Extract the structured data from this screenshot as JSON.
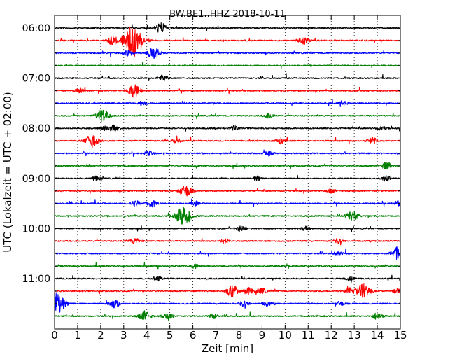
{
  "chart_data": {
    "type": "line",
    "title": "BW.BE1..HHZ 2018-10-11",
    "xlabel": "Zeit  [min]",
    "ylabel": "UTC (Lokalzeit = UTC + 02:00)",
    "xlim": [
      0,
      15
    ],
    "x_ticks": [
      "0",
      "1",
      "2",
      "3",
      "4",
      "5",
      "6",
      "7",
      "8",
      "9",
      "10",
      "11",
      "12",
      "13",
      "14",
      "15"
    ],
    "y_tick_labels": [
      "06:00",
      "07:00",
      "08:00",
      "09:00",
      "10:00",
      "11:00"
    ],
    "grid": "vertical dotted lines at each minute",
    "trace_colors": [
      "#000000",
      "#ff0000",
      "#0000ff",
      "#008000"
    ],
    "trace_interval_minutes": 15,
    "traces": [
      {
        "start": "06:00",
        "color": "#000000",
        "events": [
          [
            4.6,
            7
          ]
        ]
      },
      {
        "start": "06:15",
        "color": "#ff0000",
        "events": [
          [
            3.4,
            20
          ],
          [
            2.5,
            6
          ],
          [
            10.8,
            6
          ]
        ]
      },
      {
        "start": "06:30",
        "color": "#0000ff",
        "events": [
          [
            4.3,
            8
          ],
          [
            3.2,
            4
          ]
        ]
      },
      {
        "start": "06:45",
        "color": "#008000",
        "events": []
      },
      {
        "start": "07:00",
        "color": "#000000",
        "events": [
          [
            4.7,
            4
          ]
        ]
      },
      {
        "start": "07:15",
        "color": "#ff0000",
        "events": [
          [
            3.45,
            9
          ],
          [
            1.1,
            3
          ]
        ]
      },
      {
        "start": "07:30",
        "color": "#0000ff",
        "events": [
          [
            12.5,
            3
          ],
          [
            3.8,
            3
          ]
        ]
      },
      {
        "start": "07:45",
        "color": "#008000",
        "events": [
          [
            2.1,
            9
          ],
          [
            9.3,
            4
          ]
        ]
      },
      {
        "start": "08:00",
        "color": "#000000",
        "events": [
          [
            2.2,
            4
          ],
          [
            2.6,
            4
          ],
          [
            7.8,
            3
          ],
          [
            14.2,
            3
          ]
        ]
      },
      {
        "start": "08:15",
        "color": "#ff0000",
        "events": [
          [
            1.6,
            9
          ],
          [
            5.3,
            3
          ],
          [
            9.8,
            4
          ],
          [
            13.8,
            4
          ]
        ]
      },
      {
        "start": "08:30",
        "color": "#0000ff",
        "events": [
          [
            4.1,
            3
          ],
          [
            9.3,
            3
          ]
        ]
      },
      {
        "start": "08:45",
        "color": "#008000",
        "events": [
          [
            14.4,
            5
          ]
        ]
      },
      {
        "start": "09:00",
        "color": "#000000",
        "events": [
          [
            14.4,
            4
          ],
          [
            1.8,
            3
          ],
          [
            8.8,
            3
          ]
        ]
      },
      {
        "start": "09:15",
        "color": "#ff0000",
        "events": [
          [
            5.7,
            8
          ],
          [
            12.0,
            3
          ]
        ]
      },
      {
        "start": "09:30",
        "color": "#0000ff",
        "events": [
          [
            4.2,
            5
          ],
          [
            3.5,
            4
          ],
          [
            6.1,
            3
          ],
          [
            14.9,
            3
          ]
        ]
      },
      {
        "start": "09:45",
        "color": "#008000",
        "events": [
          [
            5.6,
            13
          ],
          [
            12.9,
            7
          ]
        ]
      },
      {
        "start": "10:00",
        "color": "#000000",
        "events": [
          [
            8.1,
            4
          ],
          [
            10.9,
            3
          ]
        ]
      },
      {
        "start": "10:15",
        "color": "#ff0000",
        "events": [
          [
            3.5,
            4
          ],
          [
            7.4,
            3
          ],
          [
            12.3,
            3
          ]
        ]
      },
      {
        "start": "10:30",
        "color": "#0000ff",
        "events": [
          [
            14.9,
            9
          ],
          [
            12.3,
            3
          ]
        ]
      },
      {
        "start": "10:45",
        "color": "#008000",
        "events": [
          [
            6.1,
            3
          ]
        ]
      },
      {
        "start": "11:00",
        "color": "#000000",
        "events": [
          [
            4.5,
            3
          ],
          [
            12.8,
            3
          ]
        ]
      },
      {
        "start": "11:15",
        "color": "#ff0000",
        "events": [
          [
            7.7,
            8
          ],
          [
            8.4,
            5
          ],
          [
            9.0,
            4
          ],
          [
            12.8,
            5
          ],
          [
            13.4,
            10
          ],
          [
            14.9,
            4
          ]
        ]
      },
      {
        "start": "11:30",
        "color": "#0000ff",
        "events": [
          [
            0.05,
            16
          ],
          [
            2.6,
            6
          ],
          [
            8.2,
            4
          ],
          [
            9.2,
            3
          ],
          [
            12.4,
            3
          ]
        ]
      },
      {
        "start": "11:45",
        "color": "#008000",
        "events": [
          [
            3.9,
            7
          ],
          [
            4.9,
            5
          ],
          [
            6.9,
            3
          ],
          [
            14.0,
            5
          ]
        ]
      }
    ]
  }
}
